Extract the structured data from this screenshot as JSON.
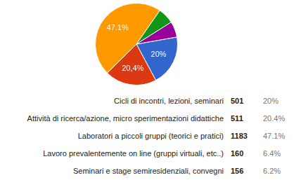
{
  "chart_data": {
    "type": "pie",
    "categories": [
      "Cicli di incontri, lezioni, seminari",
      "Attività di ricerca/azione, micro sperimentazioni didattiche",
      "Laboratori a piccoli gruppi (teorici e pratici)",
      "Lavoro prevalentemente on line (gruppi virtuali, etc..)",
      "Seminari e stage semiresidenziali, convegni"
    ],
    "values": [
      20,
      20.4,
      47.1,
      6.4,
      6.2
    ],
    "value_labels": [
      "20%",
      "20,4%",
      "47.1%",
      null,
      null
    ],
    "counts": [
      501,
      511,
      1183,
      160,
      156
    ],
    "table_percentages": [
      "20%",
      "20.4%",
      "47.1%",
      "6.4%",
      "6.2%"
    ],
    "colors": [
      "#3366cc",
      "#dc3912",
      "#ff9900",
      "#109618",
      "#990099"
    ]
  }
}
